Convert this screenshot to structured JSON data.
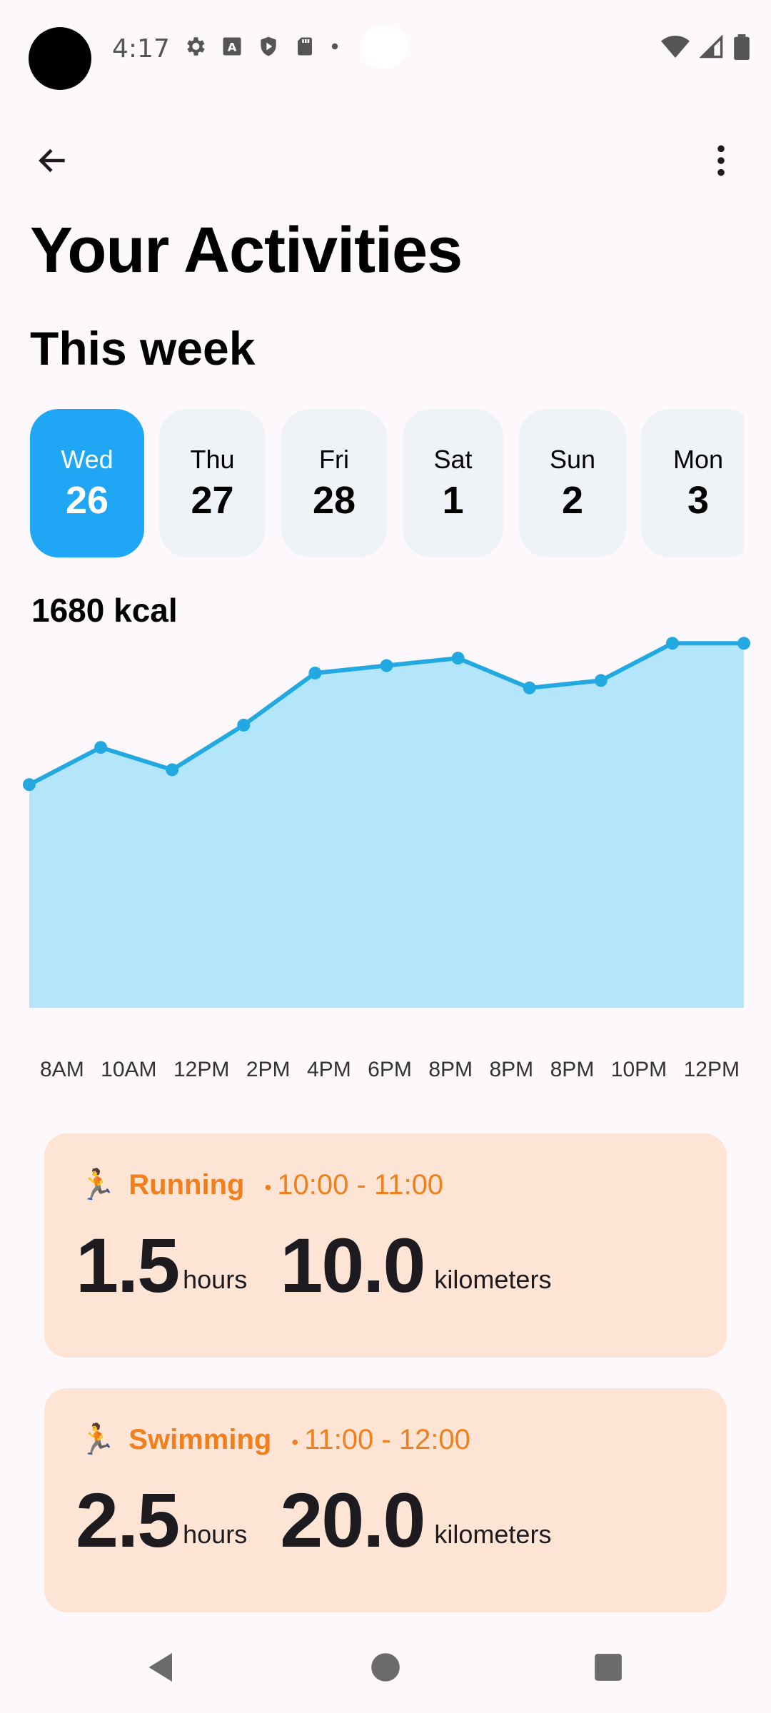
{
  "status_bar": {
    "time": "4:17",
    "left_icons": [
      "gear-icon",
      "font-a-icon",
      "shield-icon",
      "sd-card-icon",
      "dot-icon"
    ],
    "right_icons": [
      "wifi-icon",
      "signal-icon",
      "battery-icon"
    ]
  },
  "app_bar": {
    "back_icon": "arrow-left-icon",
    "more_icon": "more-vert-icon"
  },
  "page": {
    "title": "Your Activities",
    "section_title": "This week"
  },
  "days": [
    {
      "name": "Wed",
      "num": "26",
      "selected": true
    },
    {
      "name": "Thu",
      "num": "27",
      "selected": false
    },
    {
      "name": "Fri",
      "num": "28",
      "selected": false
    },
    {
      "name": "Sat",
      "num": "1",
      "selected": false
    },
    {
      "name": "Sun",
      "num": "2",
      "selected": false
    },
    {
      "name": "Mon",
      "num": "3",
      "selected": false
    }
  ],
  "kcal_label": "1680 kcal",
  "chart_data": {
    "type": "area",
    "x": [
      "8AM",
      "10AM",
      "12PM",
      "2PM",
      "4PM",
      "6PM",
      "8PM",
      "8PM",
      "8PM",
      "10PM",
      "12PM"
    ],
    "values": [
      1200,
      1250,
      1220,
      1280,
      1350,
      1360,
      1370,
      1330,
      1340,
      1390,
      1390
    ],
    "ylim": [
      900,
      1420
    ],
    "line_color": "#23a9e1",
    "fill_color": "#b3e5fb"
  },
  "activities": [
    {
      "emoji": "🏃",
      "name": "Running",
      "dot": "•",
      "time": "10:00 - 11:00",
      "duration": "1.5",
      "duration_unit": "hours",
      "distance": "10.0",
      "distance_unit": "kilometers"
    },
    {
      "emoji": "🏃",
      "name": "Swimming",
      "dot": "•",
      "time": "11:00 - 12:00",
      "duration": "2.5",
      "duration_unit": "hours",
      "distance": "20.0",
      "distance_unit": "kilometers"
    }
  ],
  "nav_bar": {
    "icons": [
      "nav-back-icon",
      "nav-home-icon",
      "nav-recents-icon"
    ]
  },
  "colors": {
    "accent": "#1fa7f5",
    "card_bg": "#fde4d4",
    "activity_text": "#f07f1d"
  }
}
